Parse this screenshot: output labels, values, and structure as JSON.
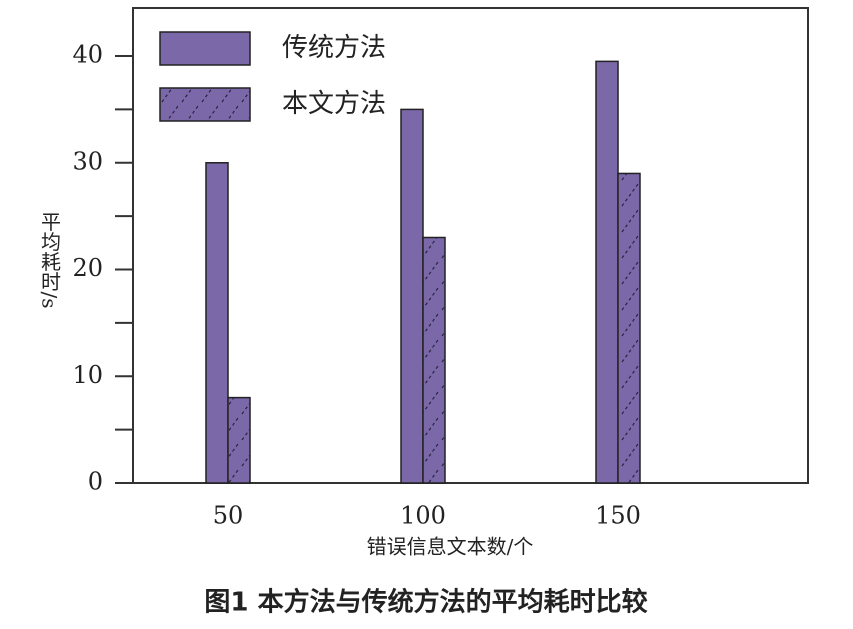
{
  "chart_data": {
    "type": "bar",
    "title": "图1 本方法与传统方法的平均耗时比较",
    "xlabel": "错误信息文本数/个",
    "ylabel": "平均耗时/s",
    "categories": [
      "50",
      "100",
      "150"
    ],
    "series": [
      {
        "name": "传统方法",
        "color": "#7a68a8",
        "hatch": false,
        "values": [
          30,
          35,
          39.5
        ]
      },
      {
        "name": "本文方法",
        "color": "#7a68a8",
        "hatch": true,
        "values": [
          8,
          23,
          29
        ]
      }
    ],
    "ylim": [
      0,
      44.5
    ],
    "yticks": [
      0,
      10,
      20,
      30,
      40
    ],
    "minor_yticks": [
      5,
      15,
      25,
      35
    ],
    "legend": "upper left"
  }
}
